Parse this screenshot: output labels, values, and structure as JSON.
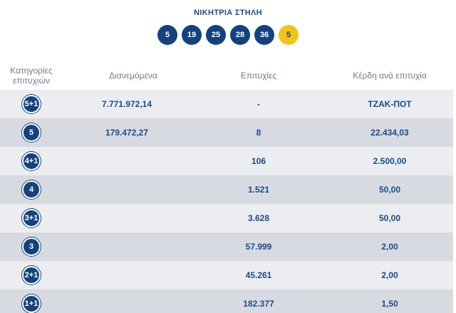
{
  "title": "ΝΙΚΗΤΡΙΑ ΣΤΗΛΗ",
  "winning_numbers": [
    "5",
    "19",
    "25",
    "28",
    "36"
  ],
  "bonus_number": "5",
  "colors": {
    "ball": "#14427e",
    "bonus": "#f3c21b",
    "row_shade": "#d7dbe1",
    "row_light": "#ebedf0",
    "text": "#1a4b8c"
  },
  "table": {
    "headers": {
      "category_line1": "Κατηγορίες",
      "category_line2": "επιτυχιών",
      "distributed": "Διανεμόμενα",
      "winners": "Επιτυχίες",
      "prize_per_winner": "Κέρδη ανά επιτυχία"
    },
    "rows": [
      {
        "category": "5+1",
        "distributed": "7.771.972,14",
        "winners": "-",
        "prize": "ΤΖΑΚ-ΠΟΤ"
      },
      {
        "category": "5",
        "distributed": "179.472,27",
        "winners": "8",
        "prize": "22.434,03"
      },
      {
        "category": "4+1",
        "distributed": "",
        "winners": "106",
        "prize": "2.500,00"
      },
      {
        "category": "4",
        "distributed": "",
        "winners": "1.521",
        "prize": "50,00"
      },
      {
        "category": "3+1",
        "distributed": "",
        "winners": "3.628",
        "prize": "50,00"
      },
      {
        "category": "3",
        "distributed": "",
        "winners": "57.999",
        "prize": "2,00"
      },
      {
        "category": "2+1",
        "distributed": "",
        "winners": "45.261",
        "prize": "2,00"
      },
      {
        "category": "1+1",
        "distributed": "",
        "winners": "182.377",
        "prize": "1,50"
      }
    ]
  }
}
